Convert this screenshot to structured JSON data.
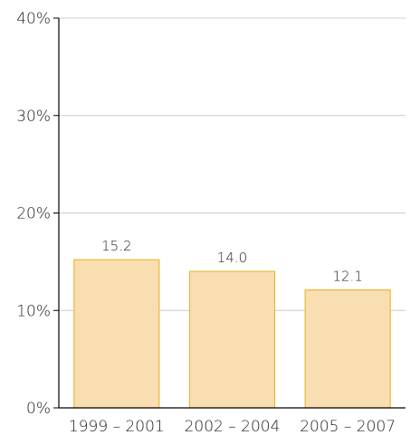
{
  "chart_data": {
    "type": "bar",
    "categories": [
      "1999 – 2001",
      "2002 – 2004",
      "2005 – 2007"
    ],
    "values": [
      15.2,
      14.0,
      12.1
    ],
    "data_labels": [
      "15.2",
      "14.0",
      "12.1"
    ],
    "title": "",
    "xlabel": "",
    "ylabel": "",
    "ylim": [
      0,
      40
    ],
    "yticks": [
      0,
      10,
      20,
      30,
      40
    ],
    "ytick_labels": [
      "0%",
      "10%",
      "20%",
      "30%",
      "40%"
    ],
    "grid": true,
    "legend": "none",
    "colors": {
      "bar_fill": "#f9deb2",
      "bar_stroke": "#e8b83a",
      "gridline": "#cccccc",
      "axis": "#000000"
    }
  }
}
